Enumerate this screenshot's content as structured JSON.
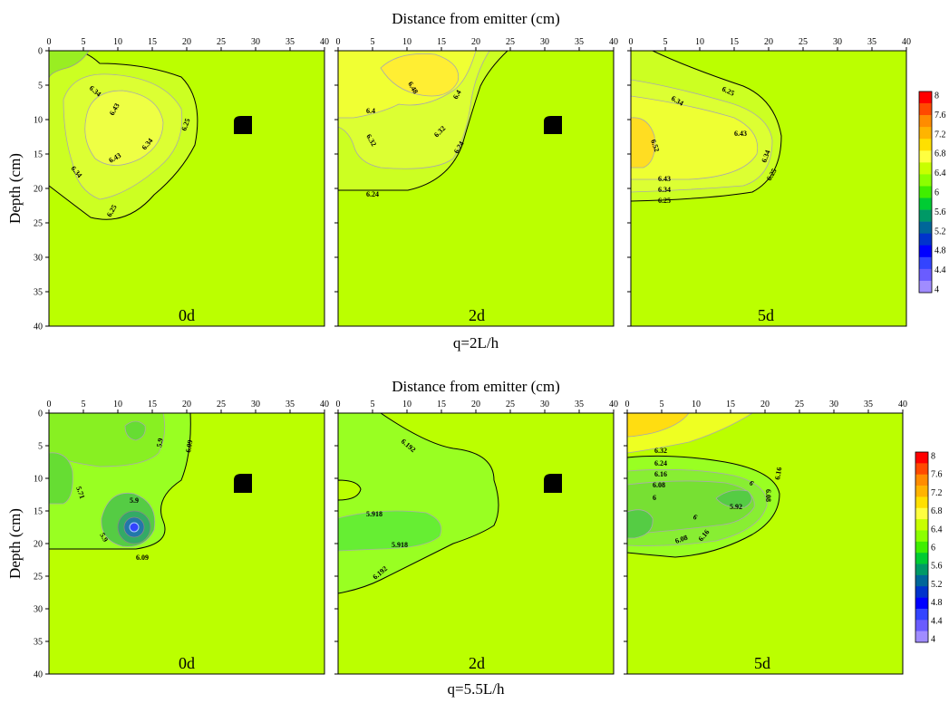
{
  "colorscale": {
    "ticks": [
      "8",
      "7.6",
      "7.2",
      "6.8",
      "6.4",
      "6",
      "5.6",
      "5.2",
      "4.8",
      "4.4",
      "4"
    ],
    "colors": [
      "#ff0000",
      "#ff4a00",
      "#ff8c00",
      "#ffb400",
      "#ffe000",
      "#ffff40",
      "#c8ff00",
      "#8cff00",
      "#40ee00",
      "#00cc33",
      "#009966",
      "#006699",
      "#0033cc",
      "#0000ff",
      "#3344ff",
      "#6a5cff",
      "#a08cff"
    ]
  },
  "rows": [
    {
      "xlabel": "Distance from emitter (cm)",
      "ylabel": "Depth (cm)",
      "caption": "q=2L/h",
      "panels": [
        {
          "label": "0d",
          "labels": [
            "6.34",
            "6.43",
            "6.25",
            "6.43",
            "6.34",
            "6.34",
            "6.25"
          ]
        },
        {
          "label": "2d",
          "labels": [
            "6.48",
            "6.4",
            "6.4",
            "6.32",
            "6.32",
            "6.24",
            "6.24"
          ]
        },
        {
          "label": "5d",
          "labels": [
            "6.34",
            "6.25",
            "6.52",
            "6.43",
            "6.34",
            "6.43",
            "6.34",
            "6.25",
            "6.25"
          ]
        }
      ]
    },
    {
      "xlabel": "Distance from emitter (cm)",
      "ylabel": "Depth (cm)",
      "caption": "q=5.5L/h",
      "panels": [
        {
          "label": "0d",
          "labels": [
            "5.9",
            "6.09",
            "5.71",
            "5.9",
            "5.9",
            "6.09"
          ]
        },
        {
          "label": "2d",
          "labels": [
            "6.192",
            "5.918",
            "5.918",
            "6.192"
          ]
        },
        {
          "label": "5d",
          "labels": [
            "6.32",
            "6.24",
            "6.16",
            "6.08",
            "6",
            "6",
            "5.92",
            "6.08",
            "6.16",
            "6",
            "6.08",
            "6.16"
          ]
        }
      ]
    }
  ],
  "chart_data": [
    {
      "type": "heatmap",
      "xlabel": "Distance from emitter (cm)",
      "ylabel": "Depth (cm)",
      "caption": "q=2L/h",
      "xlim": [
        0,
        40
      ],
      "ylim": [
        0,
        40
      ],
      "xticks": [
        0,
        5,
        10,
        15,
        20,
        25,
        30,
        35,
        40
      ],
      "yticks": [
        0,
        5,
        10,
        15,
        20,
        25,
        30,
        35,
        40
      ],
      "colorbar": {
        "min": 4,
        "max": 8,
        "ticks": [
          8,
          7.6,
          7.2,
          6.8,
          6.4,
          6,
          5.6,
          5.2,
          4.8,
          4.4,
          4
        ]
      },
      "panels": [
        {
          "label": "0d",
          "background_value": 6.2,
          "isolines": [
            6.25,
            6.34,
            6.43
          ],
          "annotations": [
            {
              "value": 6.34,
              "x": 7.5,
              "y": 5.5
            },
            {
              "value": 6.43,
              "x": 10.5,
              "y": 9.5
            },
            {
              "value": 6.25,
              "x": 21.0,
              "y": 10.5
            },
            {
              "value": 6.43,
              "x": 10.5,
              "y": 15.5
            },
            {
              "value": 6.34,
              "x": 15.5,
              "y": 13.5
            },
            {
              "value": 6.34,
              "x": 4.5,
              "y": 17.5
            },
            {
              "value": 6.25,
              "x": 10.0,
              "y": 23.5
            }
          ]
        },
        {
          "label": "2d",
          "background_value": 6.2,
          "isolines": [
            6.24,
            6.32,
            6.4,
            6.48
          ],
          "annotations": [
            {
              "value": 6.48,
              "x": 10.5,
              "y": 4.5
            },
            {
              "value": 6.4,
              "x": 18.0,
              "y": 6.5
            },
            {
              "value": 6.4,
              "x": 5.0,
              "y": 8.5
            },
            {
              "value": 6.32,
              "x": 5.0,
              "y": 13.0
            },
            {
              "value": 6.32,
              "x": 15.5,
              "y": 12.5
            },
            {
              "value": 6.24,
              "x": 18.5,
              "y": 14.0
            },
            {
              "value": 6.24,
              "x": 5.0,
              "y": 20.5
            }
          ]
        },
        {
          "label": "5d",
          "background_value": 6.2,
          "isolines": [
            6.25,
            6.34,
            6.43,
            6.52
          ],
          "annotations": [
            {
              "value": 6.34,
              "x": 7.0,
              "y": 7.0
            },
            {
              "value": 6.25,
              "x": 14.5,
              "y": 6.0
            },
            {
              "value": 6.52,
              "x": 4.0,
              "y": 13.5
            },
            {
              "value": 6.43,
              "x": 17.5,
              "y": 12.0
            },
            {
              "value": 6.34,
              "x": 19.5,
              "y": 14.5
            },
            {
              "value": 6.43,
              "x": 5.0,
              "y": 18.5
            },
            {
              "value": 6.34,
              "x": 5.0,
              "y": 20.0
            },
            {
              "value": 6.25,
              "x": 20.0,
              "y": 18.0
            },
            {
              "value": 6.25,
              "x": 5.0,
              "y": 21.5
            }
          ]
        }
      ]
    },
    {
      "type": "heatmap",
      "xlabel": "Distance from emitter (cm)",
      "ylabel": "Depth (cm)",
      "caption": "q=5.5L/h",
      "xlim": [
        0,
        40
      ],
      "ylim": [
        0,
        40
      ],
      "xticks": [
        0,
        5,
        10,
        15,
        20,
        25,
        30,
        35,
        40
      ],
      "yticks": [
        0,
        5,
        10,
        15,
        20,
        25,
        30,
        35,
        40
      ],
      "colorbar": {
        "min": 4,
        "max": 8,
        "ticks": [
          8,
          7.6,
          7.2,
          6.8,
          6.4,
          6,
          5.6,
          5.2,
          4.8,
          4.4,
          4
        ]
      },
      "panels": [
        {
          "label": "0d",
          "background_value": 6.2,
          "isolines": [
            5.71,
            5.9,
            6.09
          ],
          "annotations": [
            {
              "value": 5.9,
              "x": 17.0,
              "y": 4.5
            },
            {
              "value": 6.09,
              "x": 20.5,
              "y": 5.0
            },
            {
              "value": 5.71,
              "x": 3.5,
              "y": 10.0
            },
            {
              "value": 5.9,
              "x": 12.5,
              "y": 13.0
            },
            {
              "value": 5.9,
              "x": 8.5,
              "y": 19.0
            },
            {
              "value": 6.09,
              "x": 14.0,
              "y": 21.5
            }
          ]
        },
        {
          "label": "2d",
          "background_value": 6.2,
          "isolines": [
            5.918,
            6.192
          ],
          "annotations": [
            {
              "value": 6.192,
              "x": 12.0,
              "y": 4.5
            },
            {
              "value": 5.918,
              "x": 6.0,
              "y": 14.5
            },
            {
              "value": 5.918,
              "x": 9.5,
              "y": 19.5
            },
            {
              "value": 6.192,
              "x": 7.0,
              "y": 23.5
            }
          ]
        },
        {
          "label": "5d",
          "background_value": 6.2,
          "isolines": [
            6.0,
            6.08,
            6.16,
            6.24,
            6.32
          ],
          "annotations": [
            {
              "value": 6.32,
              "x": 5.0,
              "y": 5.0
            },
            {
              "value": 6.24,
              "x": 5.0,
              "y": 6.5
            },
            {
              "value": 6.16,
              "x": 5.0,
              "y": 8.0
            },
            {
              "value": 6.08,
              "x": 5.0,
              "y": 10.0
            },
            {
              "value": 6.0,
              "x": 4.5,
              "y": 11.5
            },
            {
              "value": 6.0,
              "x": 18.0,
              "y": 10.5
            },
            {
              "value": 5.92,
              "x": 16.0,
              "y": 14.0
            },
            {
              "value": 6.08,
              "x": 20.5,
              "y": 12.0
            },
            {
              "value": 6.16,
              "x": 22.0,
              "y": 10.5
            },
            {
              "value": 6.0,
              "x": 10.0,
              "y": 14.5
            },
            {
              "value": 6.08,
              "x": 8.5,
              "y": 18.5
            },
            {
              "value": 6.16,
              "x": 11.5,
              "y": 17.5
            }
          ]
        }
      ]
    }
  ]
}
